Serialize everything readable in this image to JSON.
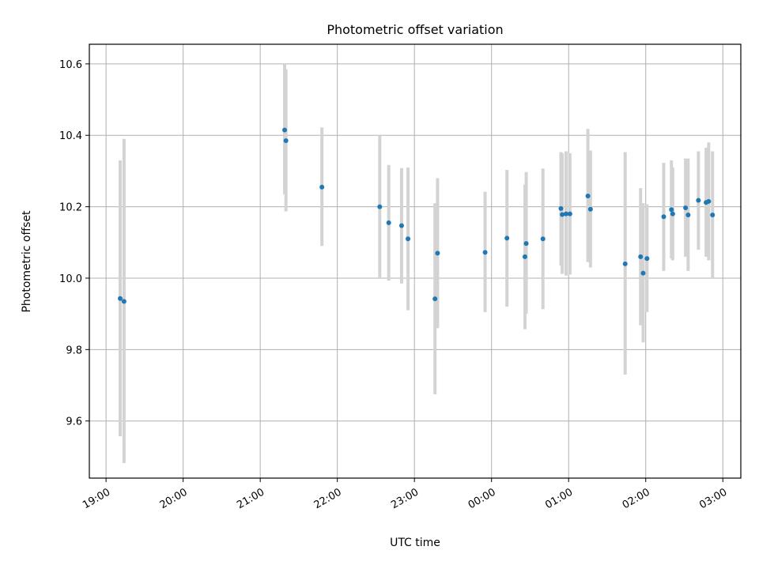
{
  "chart_data": {
    "type": "scatter",
    "title": "Photometric offset variation",
    "xlabel": "UTC time",
    "ylabel": "Photometric offset",
    "x_is_time": true,
    "xlim": [
      "18:47",
      "03:14"
    ],
    "ylim": [
      9.44,
      10.655
    ],
    "grid": true,
    "legend": "none",
    "x_ticks": [
      "19:00",
      "20:00",
      "21:00",
      "22:00",
      "23:00",
      "00:00",
      "01:00",
      "02:00",
      "03:00"
    ],
    "y_ticks": [
      9.6,
      9.8,
      10.0,
      10.2,
      10.4,
      10.6
    ],
    "colors": {
      "point": "#1f77b4",
      "errorbar": "#d3d3d3"
    },
    "series": [
      {
        "points": [
          {
            "t": "19:11",
            "y": 9.943,
            "lo": 9.557,
            "hi": 10.33
          },
          {
            "t": "19:14",
            "y": 9.935,
            "lo": 9.482,
            "hi": 10.39
          },
          {
            "t": "21:19",
            "y": 10.415,
            "lo": 10.235,
            "hi": 10.6
          },
          {
            "t": "21:20",
            "y": 10.385,
            "lo": 10.187,
            "hi": 10.585
          },
          {
            "t": "21:48",
            "y": 10.255,
            "lo": 10.09,
            "hi": 10.422
          },
          {
            "t": "22:33",
            "y": 10.2,
            "lo": 10.0,
            "hi": 10.4
          },
          {
            "t": "22:40",
            "y": 10.155,
            "lo": 9.993,
            "hi": 10.317
          },
          {
            "t": "22:50",
            "y": 10.147,
            "lo": 9.985,
            "hi": 10.308
          },
          {
            "t": "22:55",
            "y": 10.11,
            "lo": 9.91,
            "hi": 10.31
          },
          {
            "t": "23:16",
            "y": 9.942,
            "lo": 9.675,
            "hi": 10.21
          },
          {
            "t": "23:18",
            "y": 10.07,
            "lo": 9.86,
            "hi": 10.28
          },
          {
            "t": "23:55",
            "y": 10.072,
            "lo": 9.905,
            "hi": 10.242
          },
          {
            "t": "00:12",
            "y": 10.112,
            "lo": 9.92,
            "hi": 10.303
          },
          {
            "t": "00:26",
            "y": 10.06,
            "lo": 9.857,
            "hi": 10.262
          },
          {
            "t": "00:27",
            "y": 10.097,
            "lo": 9.9,
            "hi": 10.297
          },
          {
            "t": "00:40",
            "y": 10.11,
            "lo": 9.913,
            "hi": 10.307
          },
          {
            "t": "00:54",
            "y": 10.195,
            "lo": 10.035,
            "hi": 10.353
          },
          {
            "t": "00:55",
            "y": 10.178,
            "lo": 10.012,
            "hi": 10.35
          },
          {
            "t": "00:58",
            "y": 10.18,
            "lo": 10.007,
            "hi": 10.355
          },
          {
            "t": "01:01",
            "y": 10.18,
            "lo": 10.01,
            "hi": 10.35
          },
          {
            "t": "01:15",
            "y": 10.23,
            "lo": 10.045,
            "hi": 10.418
          },
          {
            "t": "01:17",
            "y": 10.193,
            "lo": 10.03,
            "hi": 10.357
          },
          {
            "t": "01:44",
            "y": 10.04,
            "lo": 9.73,
            "hi": 10.353
          },
          {
            "t": "01:56",
            "y": 10.06,
            "lo": 9.868,
            "hi": 10.252
          },
          {
            "t": "01:58",
            "y": 10.014,
            "lo": 9.82,
            "hi": 10.21
          },
          {
            "t": "02:01",
            "y": 10.055,
            "lo": 9.905,
            "hi": 10.207
          },
          {
            "t": "02:14",
            "y": 10.172,
            "lo": 10.02,
            "hi": 10.323
          },
          {
            "t": "02:20",
            "y": 10.192,
            "lo": 10.055,
            "hi": 10.33
          },
          {
            "t": "02:21",
            "y": 10.18,
            "lo": 10.05,
            "hi": 10.31
          },
          {
            "t": "02:31",
            "y": 10.197,
            "lo": 10.06,
            "hi": 10.335
          },
          {
            "t": "02:33",
            "y": 10.177,
            "lo": 10.02,
            "hi": 10.335
          },
          {
            "t": "02:41",
            "y": 10.218,
            "lo": 10.08,
            "hi": 10.355
          },
          {
            "t": "02:47",
            "y": 10.212,
            "lo": 10.06,
            "hi": 10.365
          },
          {
            "t": "02:49",
            "y": 10.215,
            "lo": 10.05,
            "hi": 10.38
          },
          {
            "t": "02:52",
            "y": 10.177,
            "lo": 10.0,
            "hi": 10.355
          }
        ]
      }
    ]
  }
}
